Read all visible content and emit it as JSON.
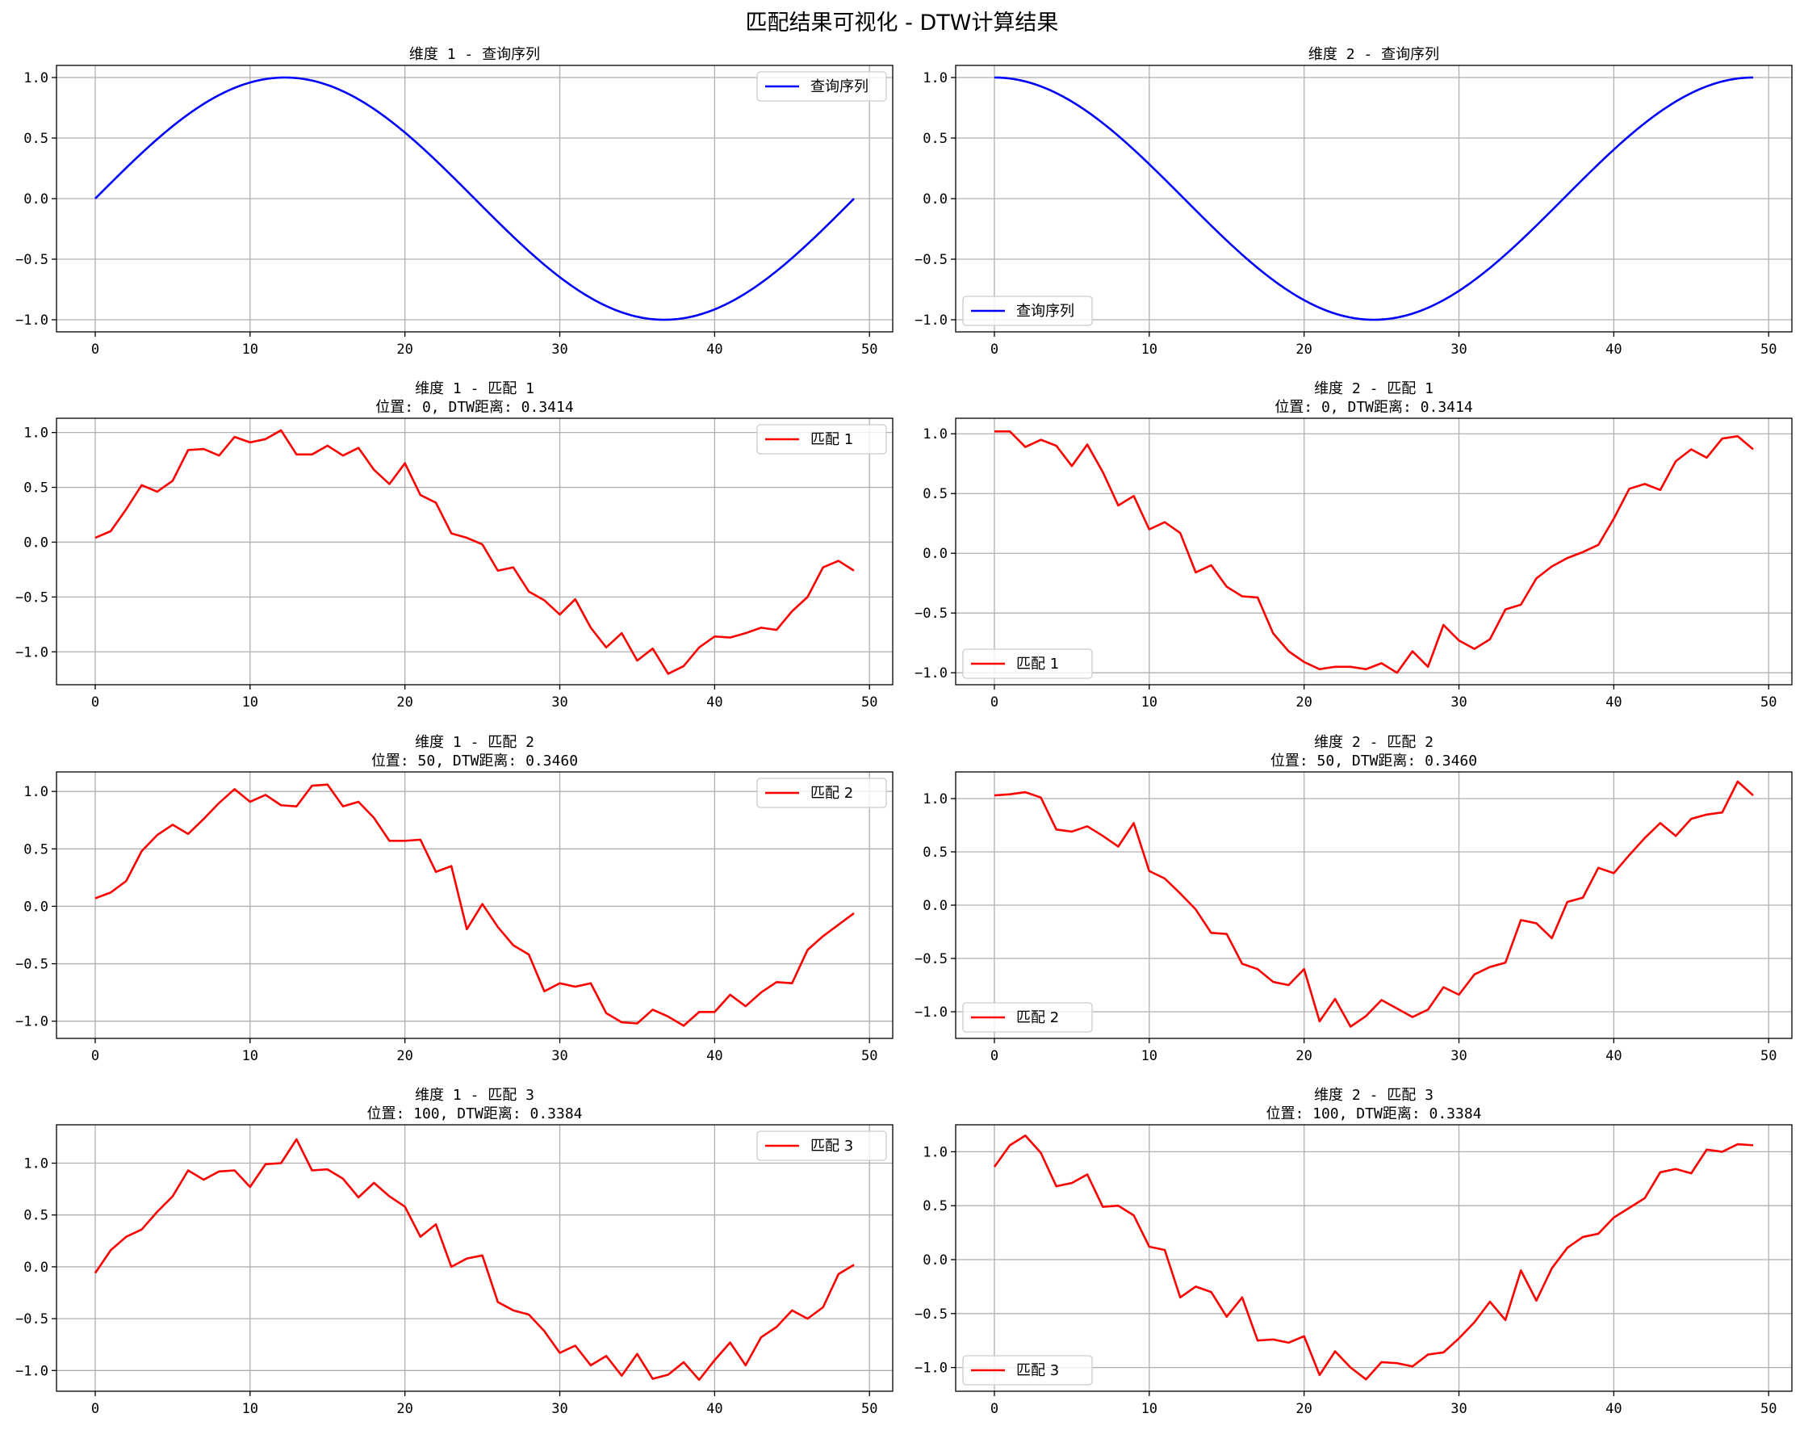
{
  "figure": {
    "title": "匹配结果可视化 - DTW计算结果"
  },
  "colors": {
    "query": "#0000ff",
    "match": "#ff0000",
    "grid": "#b0b0b0",
    "axis": "#000000"
  },
  "chart_data": [
    {
      "type": "line",
      "row": 0,
      "col": 0,
      "title_lines": [
        "维度 1 - 查询序列"
      ],
      "xlim": [
        -2.5,
        51.5
      ],
      "ylim": [
        -1.1,
        1.1
      ],
      "xticks": [
        0,
        10,
        20,
        30,
        40,
        50
      ],
      "yticks": [
        -1.0,
        -0.5,
        0.0,
        0.5,
        1.0
      ],
      "ytick_labels": [
        "−1.0",
        "−0.5",
        "0.0",
        "0.5",
        "1.0"
      ],
      "grid": true,
      "legend_loc": "upper right",
      "series": [
        {
          "name": "查询序列",
          "color": "query",
          "formula": "sin",
          "values": [
            0.0,
            0.128,
            0.253,
            0.375,
            0.49,
            0.597,
            0.694,
            0.779,
            0.852,
            0.912,
            0.956,
            0.985,
            0.999,
            0.997,
            0.979,
            0.946,
            0.898,
            0.837,
            0.762,
            0.674,
            0.576,
            0.469,
            0.353,
            0.231,
            0.105,
            -0.021,
            -0.148,
            -0.273,
            -0.394,
            -0.508,
            -0.614,
            -0.709,
            -0.792,
            -0.862,
            -0.919,
            -0.961,
            -0.988,
            -1.0,
            -0.996,
            -0.976,
            -0.94,
            -0.89,
            -0.826,
            -0.748,
            -0.658,
            -0.558,
            -0.449,
            -0.332,
            -0.209,
            -0.083
          ]
        }
      ]
    },
    {
      "type": "line",
      "row": 0,
      "col": 1,
      "title_lines": [
        "维度 2 - 查询序列"
      ],
      "xlim": [
        -2.5,
        51.5
      ],
      "ylim": [
        -1.1,
        1.1
      ],
      "xticks": [
        0,
        10,
        20,
        30,
        40,
        50
      ],
      "yticks": [
        -1.0,
        -0.5,
        0.0,
        0.5,
        1.0
      ],
      "ytick_labels": [
        "−1.0",
        "−0.5",
        "0.0",
        "0.5",
        "1.0"
      ],
      "grid": true,
      "legend_loc": "lower left",
      "series": [
        {
          "name": "查询序列",
          "color": "query",
          "formula": "cos",
          "values": [
            1.0,
            0.992,
            0.967,
            0.927,
            0.871,
            0.802,
            0.72,
            0.626,
            0.522,
            0.41,
            0.291,
            0.167,
            0.04,
            -0.088,
            -0.214,
            -0.336,
            -0.453,
            -0.562,
            -0.662,
            -0.751,
            -0.828,
            -0.892,
            -0.941,
            -0.976,
            -0.995,
            -0.999,
            -0.987,
            -0.96,
            -0.918,
            -0.863,
            -0.795,
            -0.713,
            -0.62,
            -0.515,
            -0.402,
            -0.282,
            -0.157,
            -0.029,
            0.099,
            0.224,
            0.346,
            0.462,
            0.571,
            0.67,
            0.759,
            0.836,
            0.9,
            0.951,
            0.987,
            1.0
          ]
        }
      ]
    },
    {
      "type": "line",
      "row": 1,
      "col": 0,
      "title_lines": [
        "维度 1 - 匹配 1",
        "位置: 0, DTW距离: 0.3414"
      ],
      "xlim": [
        -2.5,
        51.5
      ],
      "ylim": [
        -1.3,
        1.13
      ],
      "xticks": [
        0,
        10,
        20,
        30,
        40,
        50
      ],
      "yticks": [
        -1.0,
        -0.5,
        0.0,
        0.5,
        1.0
      ],
      "ytick_labels": [
        "−1.0",
        "−0.5",
        "0.0",
        "0.5",
        "1.0"
      ],
      "grid": true,
      "legend_loc": "upper right",
      "series": [
        {
          "name": "匹配 1",
          "color": "match",
          "values": [
            0.04,
            0.1,
            0.3,
            0.52,
            0.46,
            0.56,
            0.84,
            0.85,
            0.79,
            0.96,
            0.91,
            0.94,
            1.02,
            0.8,
            0.8,
            0.88,
            0.79,
            0.86,
            0.66,
            0.53,
            0.72,
            0.43,
            0.36,
            0.08,
            0.04,
            -0.02,
            -0.26,
            -0.23,
            -0.45,
            -0.53,
            -0.66,
            -0.52,
            -0.78,
            -0.96,
            -0.83,
            -1.08,
            -0.97,
            -1.2,
            -1.13,
            -0.96,
            -0.86,
            -0.87,
            -0.83,
            -0.78,
            -0.8,
            -0.63,
            -0.5,
            -0.23,
            -0.17,
            -0.26
          ]
        }
      ]
    },
    {
      "type": "line",
      "row": 1,
      "col": 1,
      "title_lines": [
        "维度 2 - 匹配 1",
        "位置: 0, DTW距离: 0.3414"
      ],
      "xlim": [
        -2.5,
        51.5
      ],
      "ylim": [
        -1.1,
        1.13
      ],
      "xticks": [
        0,
        10,
        20,
        30,
        40,
        50
      ],
      "yticks": [
        -1.0,
        -0.5,
        0.0,
        0.5,
        1.0
      ],
      "ytick_labels": [
        "−1.0",
        "−0.5",
        "0.0",
        "0.5",
        "1.0"
      ],
      "grid": true,
      "legend_loc": "lower left",
      "series": [
        {
          "name": "匹配 1",
          "color": "match",
          "values": [
            1.02,
            1.02,
            0.89,
            0.95,
            0.9,
            0.73,
            0.91,
            0.68,
            0.4,
            0.48,
            0.2,
            0.26,
            0.17,
            -0.16,
            -0.1,
            -0.28,
            -0.36,
            -0.37,
            -0.67,
            -0.82,
            -0.91,
            -0.97,
            -0.95,
            -0.95,
            -0.97,
            -0.92,
            -1.0,
            -0.82,
            -0.95,
            -0.6,
            -0.73,
            -0.8,
            -0.72,
            -0.47,
            -0.43,
            -0.21,
            -0.11,
            -0.04,
            0.01,
            0.07,
            0.29,
            0.54,
            0.58,
            0.53,
            0.77,
            0.87,
            0.8,
            0.96,
            0.98,
            0.87
          ]
        }
      ]
    },
    {
      "type": "line",
      "row": 2,
      "col": 0,
      "title_lines": [
        "维度 1 - 匹配 2",
        "位置: 50, DTW距离: 0.3460"
      ],
      "xlim": [
        -2.5,
        51.5
      ],
      "ylim": [
        -1.15,
        1.17
      ],
      "xticks": [
        0,
        10,
        20,
        30,
        40,
        50
      ],
      "yticks": [
        -1.0,
        -0.5,
        0.0,
        0.5,
        1.0
      ],
      "ytick_labels": [
        "−1.0",
        "−0.5",
        "0.0",
        "0.5",
        "1.0"
      ],
      "grid": true,
      "legend_loc": "upper right",
      "series": [
        {
          "name": "匹配 2",
          "color": "match",
          "values": [
            0.07,
            0.12,
            0.22,
            0.48,
            0.62,
            0.71,
            0.63,
            0.76,
            0.9,
            1.02,
            0.91,
            0.97,
            0.88,
            0.87,
            1.05,
            1.06,
            0.87,
            0.91,
            0.77,
            0.57,
            0.57,
            0.58,
            0.3,
            0.35,
            -0.2,
            0.02,
            -0.18,
            -0.34,
            -0.42,
            -0.74,
            -0.67,
            -0.7,
            -0.67,
            -0.93,
            -1.01,
            -1.02,
            -0.9,
            -0.96,
            -1.04,
            -0.92,
            -0.92,
            -0.77,
            -0.87,
            -0.75,
            -0.66,
            -0.67,
            -0.38,
            -0.26,
            -0.16,
            -0.06
          ]
        }
      ]
    },
    {
      "type": "line",
      "row": 2,
      "col": 1,
      "title_lines": [
        "维度 2 - 匹配 2",
        "位置: 50, DTW距离: 0.3460"
      ],
      "xlim": [
        -2.5,
        51.5
      ],
      "ylim": [
        -1.25,
        1.25
      ],
      "xticks": [
        0,
        10,
        20,
        30,
        40,
        50
      ],
      "yticks": [
        -1.0,
        -0.5,
        0.0,
        0.5,
        1.0
      ],
      "ytick_labels": [
        "−1.0",
        "−0.5",
        "0.0",
        "0.5",
        "1.0"
      ],
      "grid": true,
      "legend_loc": "lower left",
      "series": [
        {
          "name": "匹配 2",
          "color": "match",
          "values": [
            1.03,
            1.04,
            1.06,
            1.01,
            0.71,
            0.69,
            0.74,
            0.65,
            0.55,
            0.77,
            0.32,
            0.25,
            0.11,
            -0.04,
            -0.26,
            -0.27,
            -0.55,
            -0.6,
            -0.72,
            -0.75,
            -0.6,
            -1.09,
            -0.88,
            -1.14,
            -1.04,
            -0.89,
            -0.97,
            -1.05,
            -0.98,
            -0.77,
            -0.84,
            -0.65,
            -0.58,
            -0.54,
            -0.14,
            -0.17,
            -0.31,
            0.03,
            0.07,
            0.35,
            0.3,
            0.47,
            0.63,
            0.77,
            0.65,
            0.81,
            0.85,
            0.87,
            1.16,
            1.03
          ]
        }
      ]
    },
    {
      "type": "line",
      "row": 3,
      "col": 0,
      "title_lines": [
        "维度 1 - 匹配 3",
        "位置: 100, DTW距离: 0.3384"
      ],
      "xlim": [
        -2.5,
        51.5
      ],
      "ylim": [
        -1.2,
        1.37
      ],
      "xticks": [
        0,
        10,
        20,
        30,
        40,
        50
      ],
      "yticks": [
        -1.0,
        -0.5,
        0.0,
        0.5,
        1.0
      ],
      "ytick_labels": [
        "−1.0",
        "−0.5",
        "0.0",
        "0.5",
        "1.0"
      ],
      "grid": true,
      "legend_loc": "upper right",
      "series": [
        {
          "name": "匹配 3",
          "color": "match",
          "values": [
            -0.06,
            0.16,
            0.29,
            0.36,
            0.53,
            0.68,
            0.93,
            0.84,
            0.92,
            0.93,
            0.77,
            0.99,
            1.0,
            1.23,
            0.93,
            0.94,
            0.85,
            0.67,
            0.81,
            0.68,
            0.58,
            0.29,
            0.41,
            0.0,
            0.08,
            0.11,
            -0.34,
            -0.42,
            -0.46,
            -0.62,
            -0.83,
            -0.76,
            -0.95,
            -0.86,
            -1.05,
            -0.84,
            -1.08,
            -1.04,
            -0.92,
            -1.09,
            -0.9,
            -0.73,
            -0.95,
            -0.68,
            -0.58,
            -0.42,
            -0.5,
            -0.39,
            -0.07,
            0.02
          ]
        }
      ]
    },
    {
      "type": "line",
      "row": 3,
      "col": 1,
      "title_lines": [
        "维度 2 - 匹配 3",
        "位置: 100, DTW距离: 0.3384"
      ],
      "xlim": [
        -2.5,
        51.5
      ],
      "ylim": [
        -1.22,
        1.25
      ],
      "xticks": [
        0,
        10,
        20,
        30,
        40,
        50
      ],
      "yticks": [
        -1.0,
        -0.5,
        0.0,
        0.5,
        1.0
      ],
      "ytick_labels": [
        "−1.0",
        "−0.5",
        "0.0",
        "0.5",
        "1.0"
      ],
      "grid": true,
      "legend_loc": "lower left",
      "series": [
        {
          "name": "匹配 3",
          "color": "match",
          "values": [
            0.86,
            1.06,
            1.15,
            0.99,
            0.68,
            0.71,
            0.79,
            0.49,
            0.5,
            0.41,
            0.12,
            0.09,
            -0.35,
            -0.25,
            -0.3,
            -0.53,
            -0.35,
            -0.75,
            -0.74,
            -0.77,
            -0.71,
            -1.07,
            -0.85,
            -1.0,
            -1.11,
            -0.95,
            -0.96,
            -0.99,
            -0.88,
            -0.86,
            -0.73,
            -0.58,
            -0.39,
            -0.56,
            -0.1,
            -0.38,
            -0.08,
            0.11,
            0.21,
            0.24,
            0.39,
            0.48,
            0.57,
            0.81,
            0.84,
            0.8,
            1.02,
            1.0,
            1.07,
            1.06
          ]
        }
      ]
    }
  ]
}
